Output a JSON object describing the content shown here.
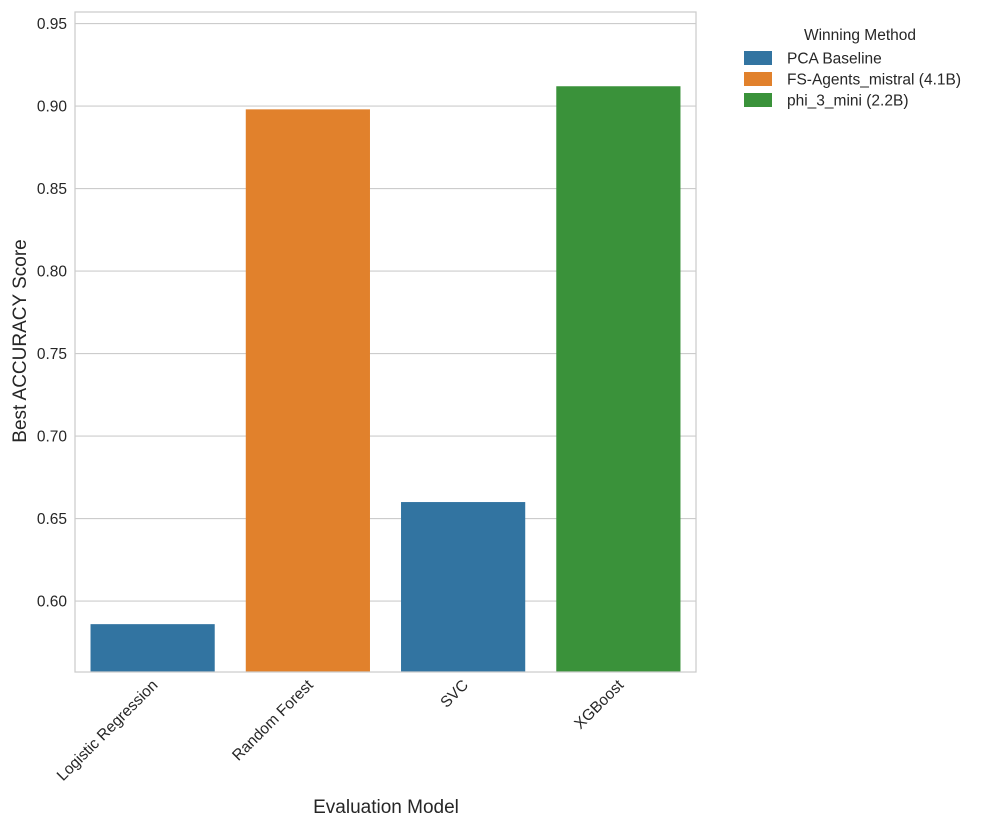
{
  "chart_data": {
    "type": "bar",
    "title": "",
    "xlabel": "Evaluation Model",
    "ylabel": "Best ACCURACY Score",
    "ylim": [
      0.557,
      0.957
    ],
    "yticks": [
      "0.60",
      "0.65",
      "0.70",
      "0.75",
      "0.80",
      "0.85",
      "0.90",
      "0.95"
    ],
    "categories": [
      "Logistic Regression",
      "Random Forest",
      "SVC",
      "XGBoost"
    ],
    "values": [
      0.586,
      0.898,
      0.66,
      0.912
    ],
    "winners": [
      "PCA Baseline",
      "FS-Agents_mistral (4.1B)",
      "PCA Baseline",
      "phi_3_mini (2.2B)"
    ],
    "grid": true,
    "legend": {
      "title": "Winning Method",
      "placement": "outside-top-right",
      "entries": [
        {
          "label": "PCA Baseline",
          "color": "#3274a1"
        },
        {
          "label": "FS-Agents_mistral (4.1B)",
          "color": "#e1812c"
        },
        {
          "label": "phi_3_mini (2.2B)",
          "color": "#3a923a"
        }
      ]
    }
  }
}
